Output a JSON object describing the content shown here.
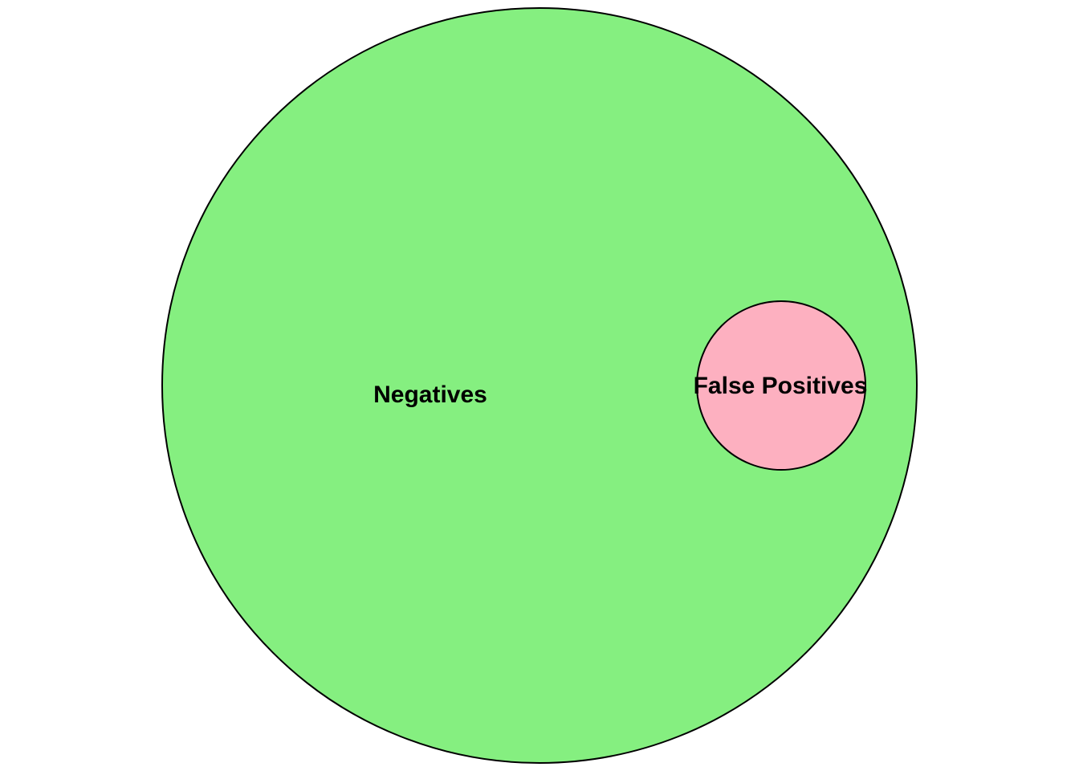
{
  "diagram": {
    "type": "venn",
    "sets": [
      {
        "id": "negatives",
        "label": "Negatives",
        "fill_color": "#85ef80",
        "stroke_color": "#000000"
      },
      {
        "id": "false_positives",
        "label": "False Positives",
        "fill_color": "#fdb0c0",
        "stroke_color": "#000000",
        "contained_in": "negatives"
      }
    ]
  }
}
